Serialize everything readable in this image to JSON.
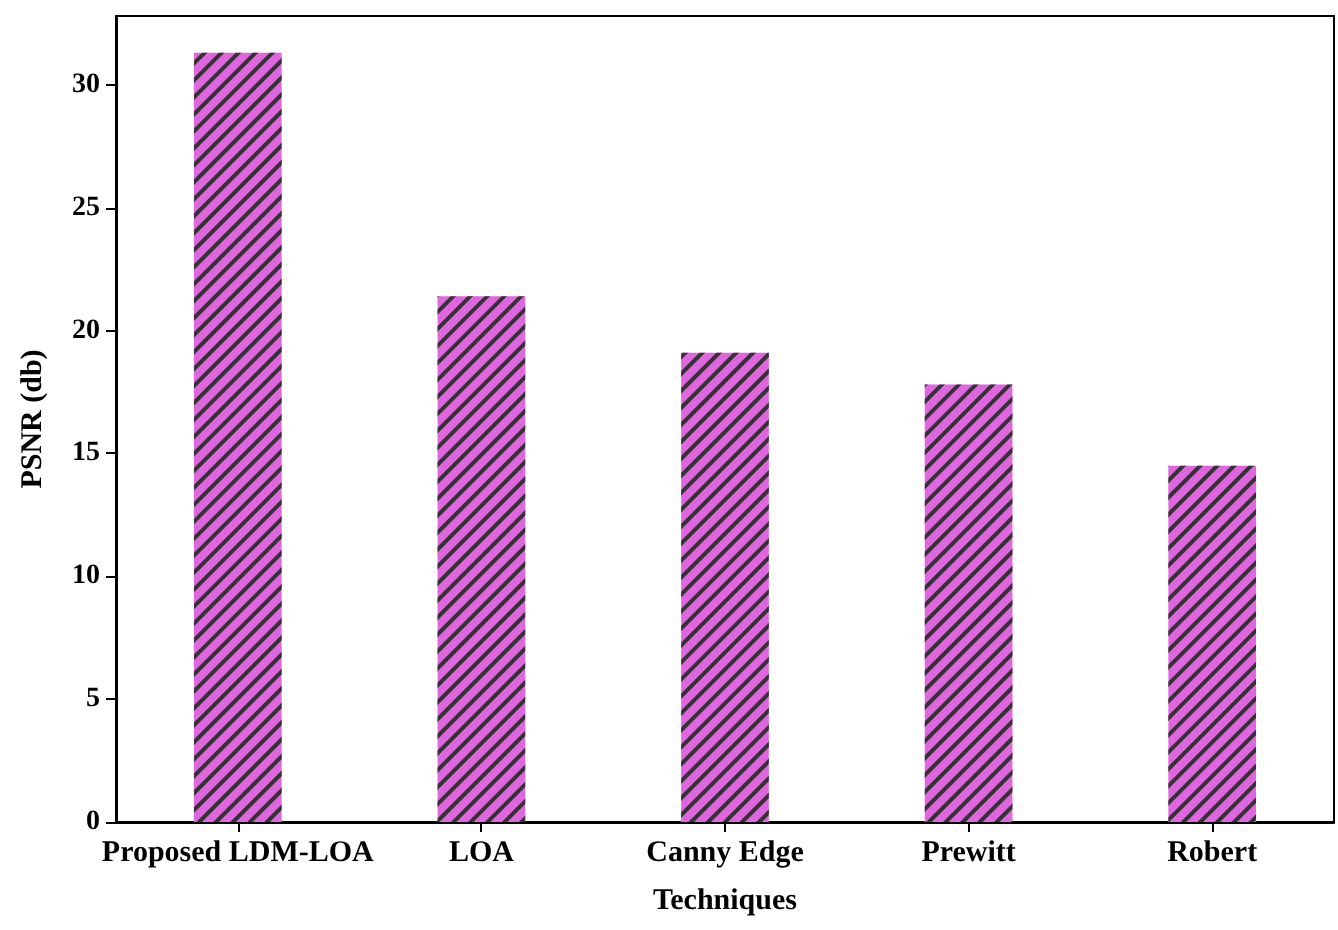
{
  "chart_data": {
    "type": "bar",
    "xlabel": "Techniques",
    "ylabel": "PSNR (db)",
    "categories": [
      "Proposed LDM-LOA",
      "LOA",
      "Canny Edge",
      "Prewitt",
      "Robert"
    ],
    "values": [
      31.3,
      21.4,
      19.1,
      17.8,
      14.5
    ],
    "color": "#e066e0",
    "ylim": [
      0,
      32.8
    ],
    "yticks": [
      0,
      5,
      10,
      15,
      20,
      25,
      30
    ],
    "grid": false
  }
}
